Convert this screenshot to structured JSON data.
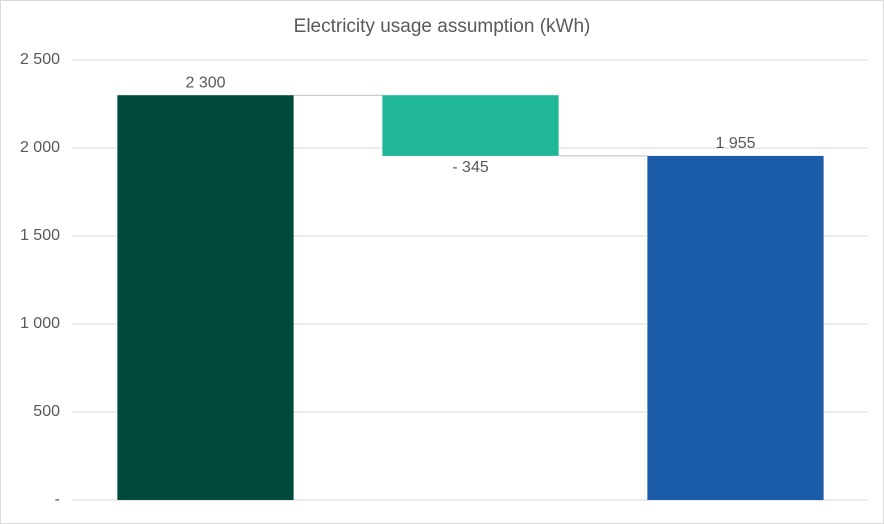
{
  "chart_data": {
    "type": "waterfall",
    "title": "Electricity usage assumption (kWh)",
    "categories": [
      null,
      null,
      null
    ],
    "values": [
      2300,
      -345,
      1955
    ],
    "value_labels": [
      "2 300",
      "- 345",
      "1 955"
    ],
    "colors": [
      "#004a3c",
      "#20b799",
      "#1b5ca8"
    ],
    "ylim": [
      0,
      2500
    ],
    "yticks": [
      {
        "value": 0,
        "label": "-"
      },
      {
        "value": 500,
        "label": "500"
      },
      {
        "value": 1000,
        "label": "1 000"
      },
      {
        "value": 1500,
        "label": "1 500"
      },
      {
        "value": 2000,
        "label": "2 000"
      },
      {
        "value": 2500,
        "label": "2 500"
      }
    ],
    "grid": true
  }
}
